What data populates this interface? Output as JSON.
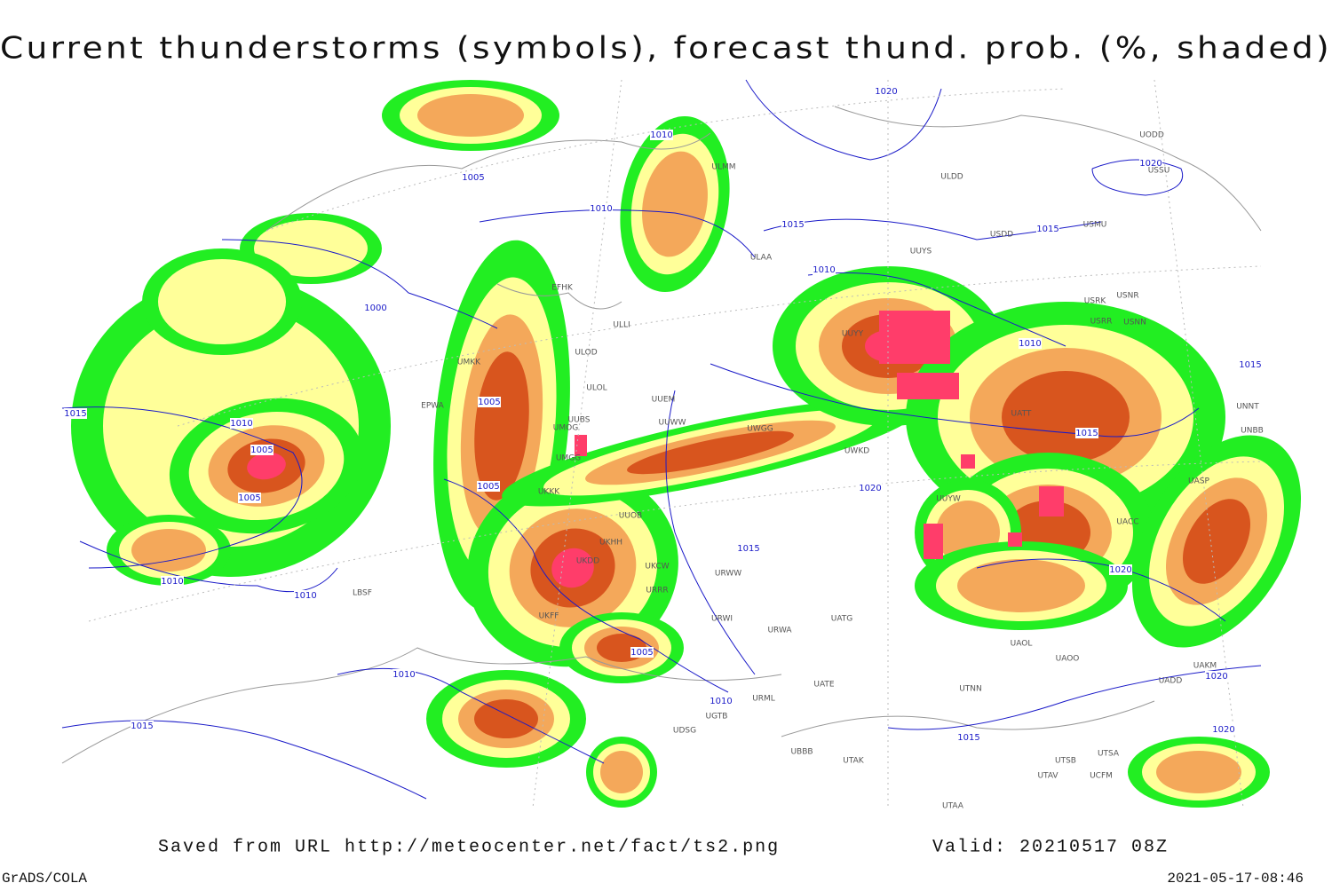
{
  "title": "Current thunderstorms (symbols), forecast thund. prob. (%, shaded)",
  "footer": {
    "source": "Saved from URL http://meteocenter.net/fact/ts2.png",
    "valid": "Valid: 20210517 08Z",
    "software": "GrADS/COLA",
    "timestamp": "2021-05-17-08:46"
  },
  "isobar_labels": [
    "1020",
    "1010",
    "1005",
    "1010",
    "1015",
    "1000",
    "1015",
    "1010",
    "1005",
    "1005",
    "1010",
    "1010",
    "1015",
    "1015",
    "1010",
    "1015",
    "1020",
    "1015",
    "1005",
    "1005",
    "1010",
    "1010",
    "1015",
    "1020",
    "1020",
    "1020",
    "1015",
    "1020",
    "1010",
    "1005"
  ],
  "stations": [
    "UODD",
    "USSU",
    "ULDD",
    "UUYS",
    "USMU",
    "USDD",
    "ULAA",
    "ULMM",
    "EFHK",
    "USRK",
    "USNR",
    "USRR",
    "USNN",
    "UUYY",
    "ULLI",
    "ULOD",
    "UMKK",
    "ULOL",
    "UUEM",
    "EPWA",
    "UUBS",
    "UMOG",
    "UMGG",
    "UUWW",
    "UWGG",
    "UWKD",
    "UKKK",
    "UUOB",
    "UKHH",
    "UKDD",
    "UKCW",
    "URWW",
    "URRR",
    "URWI",
    "UATG",
    "URWA",
    "UATE",
    "UATT",
    "UTNN",
    "UTAK",
    "UBBB",
    "UTAA",
    "UACC",
    "UASP",
    "UNNT",
    "UAOL",
    "UAOO",
    "UADD",
    "UAKM",
    "UTSB",
    "UTSA",
    "UTAV",
    "UCFM",
    "LBSF",
    "UKFF",
    "UGTB",
    "UDSG",
    "URML",
    "UUYW",
    "UNBB"
  ]
}
